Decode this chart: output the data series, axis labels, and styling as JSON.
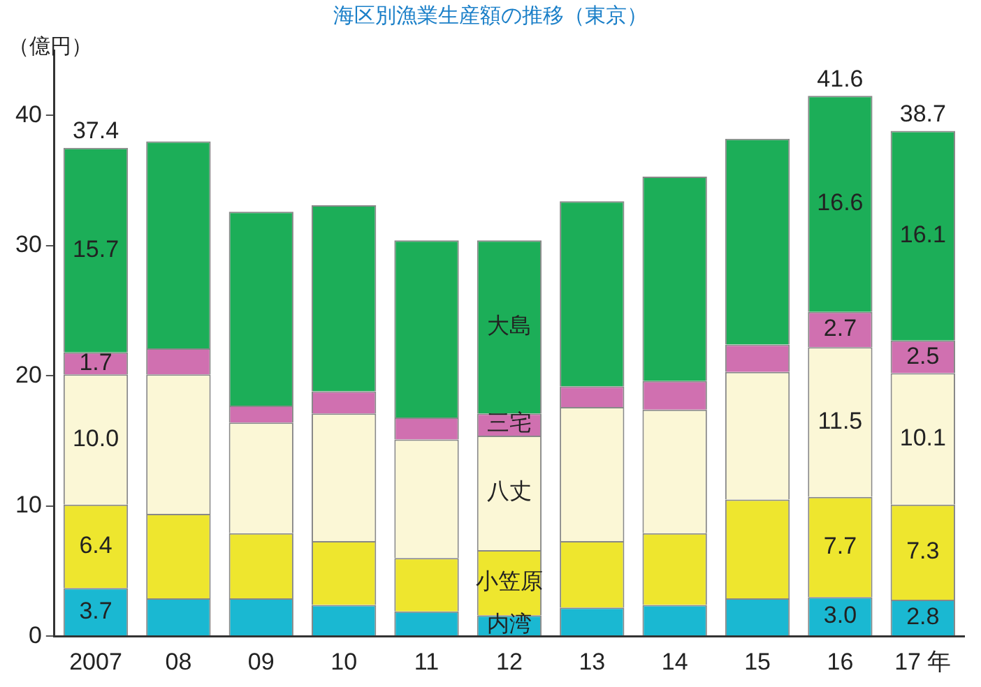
{
  "chart_data": {
    "type": "bar",
    "stacked": true,
    "title": "海区別漁業生産額の推移（東京）",
    "ylabel": "（億円）",
    "categories": [
      "2007",
      "08",
      "09",
      "10",
      "11",
      "12",
      "13",
      "14",
      "15",
      "16",
      "17 年"
    ],
    "ylim": [
      0,
      45
    ],
    "yticks": [
      0,
      10,
      20,
      30,
      40
    ],
    "grid": false,
    "legend": false,
    "series": [
      {
        "name": "内湾",
        "color": "#1ab8d2",
        "values": [
          3.7,
          2.9,
          2.9,
          2.4,
          1.9,
          1.6,
          2.2,
          2.4,
          2.9,
          3.0,
          2.8
        ],
        "value_labels": [
          "3.7",
          null,
          null,
          null,
          null,
          null,
          null,
          null,
          null,
          "3.0",
          "2.8"
        ]
      },
      {
        "name": "小笠原",
        "color": "#eee62e",
        "values": [
          6.4,
          6.5,
          5.0,
          4.9,
          4.1,
          5.0,
          5.1,
          5.5,
          7.6,
          7.7,
          7.3
        ],
        "value_labels": [
          "6.4",
          null,
          null,
          null,
          null,
          null,
          null,
          null,
          null,
          "7.7",
          "7.3"
        ]
      },
      {
        "name": "八丈",
        "color": "#fbf7d6",
        "values": [
          10.0,
          10.7,
          8.5,
          9.8,
          9.1,
          8.8,
          10.3,
          9.5,
          9.8,
          11.5,
          10.1
        ],
        "value_labels": [
          "10.0",
          null,
          null,
          null,
          null,
          null,
          null,
          null,
          null,
          "11.5",
          "10.1"
        ]
      },
      {
        "name": "三宅",
        "color": "#d070b0",
        "values": [
          1.7,
          2.0,
          1.3,
          1.7,
          1.7,
          1.7,
          1.6,
          2.2,
          2.1,
          2.7,
          2.5
        ],
        "value_labels": [
          "1.7",
          null,
          null,
          null,
          null,
          null,
          null,
          null,
          null,
          "2.7",
          "2.5"
        ]
      },
      {
        "name": "大島",
        "color": "#1cae58",
        "values": [
          15.7,
          15.9,
          14.9,
          14.3,
          13.6,
          13.3,
          14.2,
          15.7,
          15.8,
          16.6,
          16.1
        ],
        "value_labels": [
          "15.7",
          null,
          null,
          null,
          null,
          null,
          null,
          null,
          null,
          "16.6",
          "16.1"
        ]
      }
    ],
    "totals": [
      "37.4",
      null,
      null,
      null,
      null,
      null,
      null,
      null,
      null,
      "41.6",
      "38.7"
    ]
  }
}
